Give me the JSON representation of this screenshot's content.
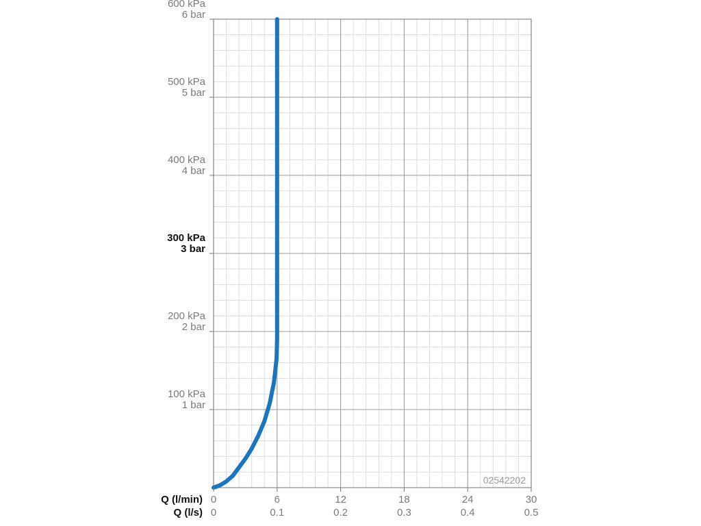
{
  "chart_data": {
    "type": "line",
    "y_axis": {
      "ylim": [
        0,
        600
      ],
      "ticks": [
        {
          "value": 100,
          "kpa": "100 kPa",
          "bar": "1 bar",
          "bold": false
        },
        {
          "value": 200,
          "kpa": "200 kPa",
          "bar": "2 bar",
          "bold": false
        },
        {
          "value": 300,
          "kpa": "300 kPa",
          "bar": "3 bar",
          "bold": true
        },
        {
          "value": 400,
          "kpa": "400 kPa",
          "bar": "4 bar",
          "bold": false
        },
        {
          "value": 500,
          "kpa": "500 kPa",
          "bar": "5 bar",
          "bold": false
        },
        {
          "value": 600,
          "kpa": "600 kPa",
          "bar": "6 bar",
          "bold": false
        }
      ]
    },
    "x_axis": {
      "xlim": [
        0,
        30
      ],
      "label_lmin": "Q (l/min)",
      "label_ls": "Q (l/s)",
      "ticks_lmin": [
        "0",
        "6",
        "12",
        "18",
        "24",
        "30"
      ],
      "ticks_ls": [
        "0",
        "0.1",
        "0.2",
        "0.3",
        "0.4",
        "0.5"
      ]
    },
    "grid": true,
    "series": [
      {
        "color": "#1a75bc",
        "points": [
          [
            0,
            0
          ],
          [
            0.6,
            3
          ],
          [
            1.2,
            8
          ],
          [
            1.8,
            15
          ],
          [
            2.4,
            26
          ],
          [
            3.0,
            37
          ],
          [
            3.6,
            50
          ],
          [
            4.2,
            66
          ],
          [
            4.8,
            85
          ],
          [
            5.3,
            108
          ],
          [
            5.7,
            135
          ],
          [
            5.95,
            165
          ],
          [
            6.0,
            190
          ],
          [
            6.0,
            300
          ],
          [
            6.0,
            450
          ],
          [
            6.0,
            600
          ]
        ]
      }
    ],
    "annotation": "02542202"
  }
}
